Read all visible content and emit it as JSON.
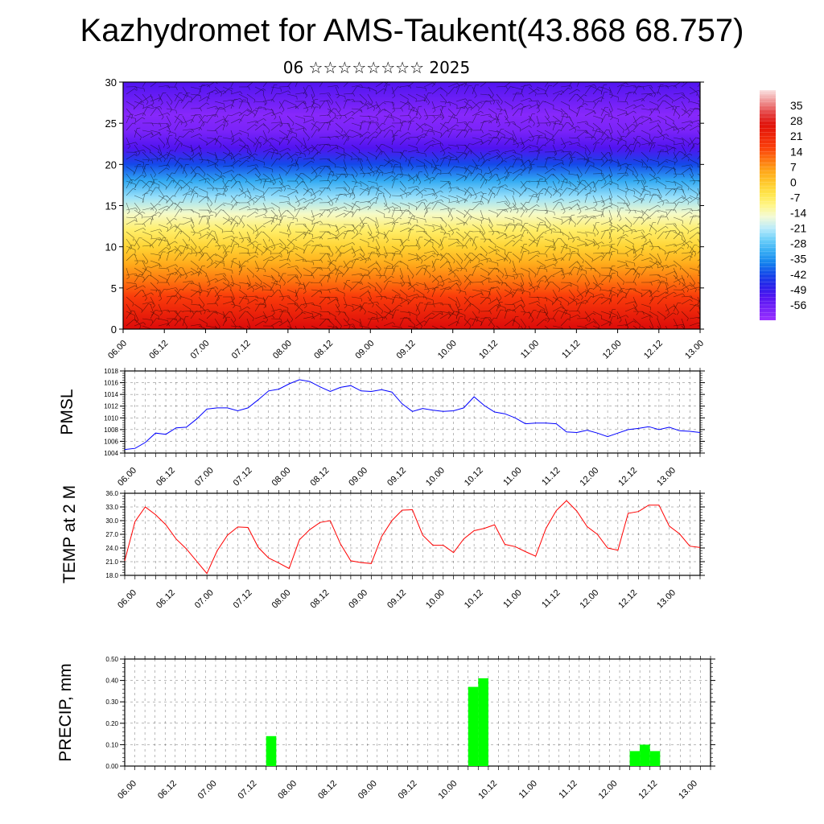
{
  "title": "Kazhydromet for AMS-Taukent(43.868 68.757)",
  "subtitle": "06 ☆☆☆☆☆☆☆☆ 2025",
  "time_labels": [
    "06.00",
    "06.12",
    "07.00",
    "07.12",
    "08.00",
    "08.12",
    "09.00",
    "09.12",
    "10.00",
    "10.12",
    "11.00",
    "11.12",
    "12.00",
    "12.12",
    "13.00"
  ],
  "chart_data": [
    {
      "type": "heatmap",
      "variable": "temperature cross-section with wind barbs",
      "ylim": [
        0,
        30
      ],
      "y_ticks": [
        "0",
        "5",
        "10",
        "15",
        "20",
        "25",
        "30"
      ],
      "colorbar_ticks": [
        "35",
        "28",
        "21",
        "14",
        "7",
        "0",
        "-7",
        "-14",
        "-21",
        "-28",
        "-35",
        "-42",
        "-49",
        "-56"
      ],
      "colorbar_range": [
        -63,
        42
      ],
      "levels": [
        0,
        2,
        4,
        6,
        8,
        10,
        12,
        14,
        16,
        18,
        20,
        22,
        24,
        26,
        28,
        30
      ],
      "profile_values": [
        28,
        22,
        16,
        10,
        4,
        -2,
        -8,
        -15,
        -23,
        -32,
        -42,
        -52,
        -58,
        -60,
        -56,
        -52
      ]
    },
    {
      "type": "line",
      "ylabel": "PMSL",
      "ylim": [
        1004,
        1018
      ],
      "y_ticks": [
        "1004",
        "1006",
        "1008",
        "1010",
        "1012",
        "1014",
        "1016",
        "1018"
      ],
      "color": "#0000ff",
      "values": [
        1004.6,
        1004.8,
        1005.8,
        1007.4,
        1007.2,
        1008.3,
        1008.4,
        1009.8,
        1011.5,
        1011.7,
        1011.7,
        1011.2,
        1011.7,
        1013.1,
        1014.6,
        1014.9,
        1015.8,
        1016.5,
        1016.2,
        1015.3,
        1014.5,
        1015.2,
        1015.5,
        1014.6,
        1014.5,
        1014.8,
        1014.4,
        1012.4,
        1011.1,
        1011.6,
        1011.3,
        1011.1,
        1011.2,
        1011.7,
        1013.6,
        1012.1,
        1011.0,
        1010.7,
        1010.0,
        1009.0,
        1009.1,
        1009.1,
        1009.0,
        1007.6,
        1007.5,
        1007.9,
        1007.4,
        1006.8,
        1007.4,
        1008.0,
        1008.2,
        1008.5,
        1008.0,
        1008.4,
        1007.8,
        1007.7,
        1007.5
      ]
    },
    {
      "type": "line",
      "ylabel": "TEMP at 2 M",
      "ylim": [
        18,
        36
      ],
      "y_ticks": [
        "18.0",
        "21.0",
        "24.0",
        "27.0",
        "30.0",
        "33.0",
        "36.0"
      ],
      "color": "#ff0000",
      "values": [
        21.2,
        29.8,
        33.0,
        31.3,
        29.1,
        26.0,
        23.8,
        21.1,
        18.4,
        23.4,
        26.8,
        28.6,
        28.5,
        24.1,
        21.8,
        20.7,
        19.5,
        25.8,
        28.0,
        29.6,
        30.0,
        24.9,
        21.2,
        20.8,
        20.6,
        26.5,
        30.0,
        32.3,
        32.4,
        26.8,
        24.6,
        24.6,
        23.0,
        26.0,
        27.8,
        28.3,
        29.1,
        24.8,
        24.3,
        23.2,
        22.2,
        28.3,
        32.2,
        34.4,
        32.1,
        28.7,
        27.0,
        24.0,
        23.5,
        31.6,
        32.0,
        33.4,
        33.4,
        28.8,
        27.1,
        24.4,
        24.1
      ]
    },
    {
      "type": "bar",
      "ylabel": "PRECIP, mm",
      "ylim": [
        0,
        0.5
      ],
      "y_ticks": [
        "0.00",
        "0.10",
        "0.20",
        "0.30",
        "0.40",
        "0.50"
      ],
      "color": "#00ff00",
      "bars": [
        {
          "x": 14.5,
          "value": 0.14
        },
        {
          "x": 34.5,
          "value": 0.37
        },
        {
          "x": 35.5,
          "value": 0.41
        },
        {
          "x": 50.5,
          "value": 0.07
        },
        {
          "x": 51.5,
          "value": 0.1
        },
        {
          "x": 52.5,
          "value": 0.07
        }
      ]
    }
  ]
}
